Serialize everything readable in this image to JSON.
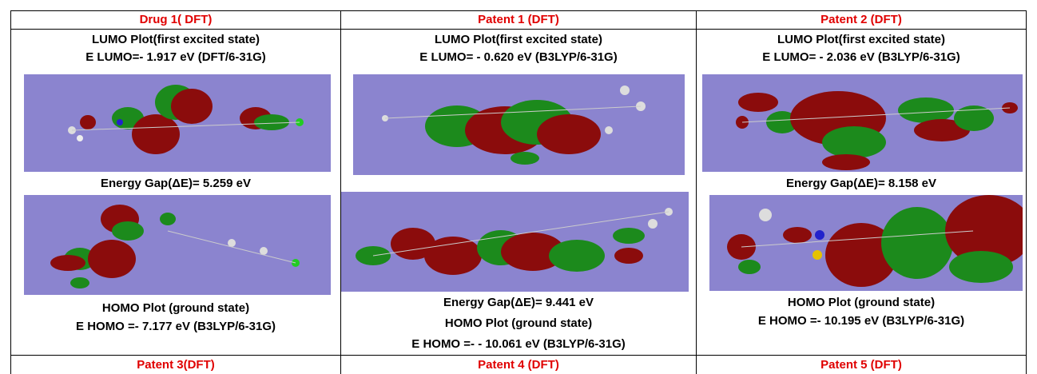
{
  "columns": [
    {
      "header": "Drug 1( DFT)",
      "lumo_title": "LUMO Plot(first excited state)",
      "lumo_energy": "E LUMO=- 1.917  eV (DFT/6-31G)",
      "gap": "Energy Gap(ΔE)= 5.259 eV",
      "homo_title": "HOMO Plot (ground state)",
      "homo_energy": "E HOMO =- 7.177 eV (B3LYP/6-31G)"
    },
    {
      "header": "Patent 1 (DFT)",
      "lumo_title": "LUMO Plot(first excited state)",
      "lumo_energy": "E LUMO= - 0.620 eV  (B3LYP/6-31G)",
      "gap": "Energy Gap(ΔE)= 9.441 eV",
      "homo_title": "HOMO Plot (ground state)",
      "homo_energy": "E HOMO =- - 10.061  eV (B3LYP/6-31G)"
    },
    {
      "header": "Patent 2 (DFT)",
      "lumo_title": "LUMO Plot(first excited state)",
      "lumo_energy": "E LUMO= - 2.036  eV  (B3LYP/6-31G)",
      "gap": "Energy Gap(ΔE)= 8.158 eV",
      "homo_title": "HOMO Plot (ground state)",
      "homo_energy": "E HOMO =- 10.195 eV (B3LYP/6-31G)"
    }
  ],
  "next_row_headers": [
    "Patent 3(DFT)",
    "Patent 4 (DFT)",
    "Patent 5 (DFT)"
  ],
  "colors": {
    "header_red": "#e00000",
    "plot_background": "#8b84cf",
    "orbital_red": "#8b0c0c",
    "orbital_green": "#1c8a1c"
  }
}
